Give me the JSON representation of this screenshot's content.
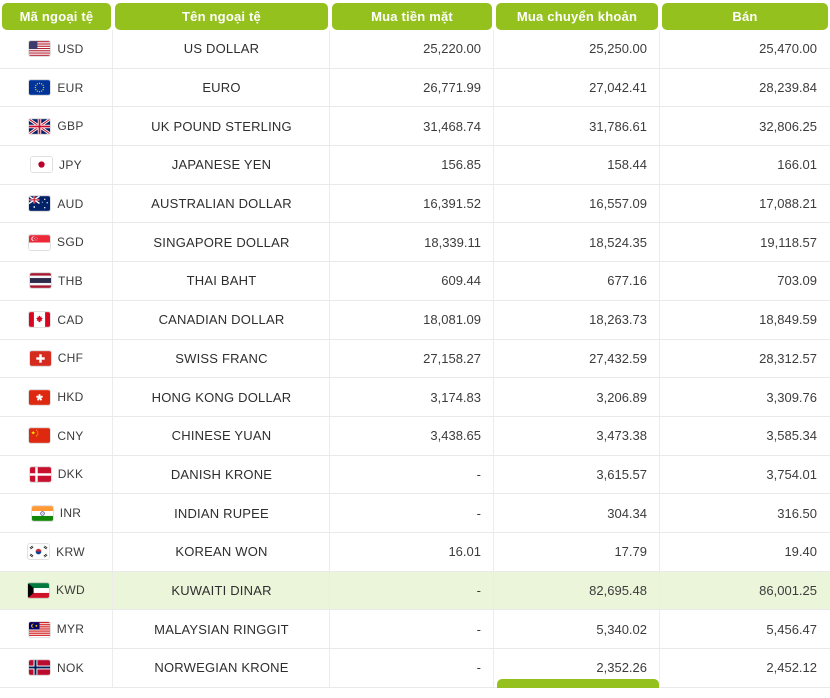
{
  "colors": {
    "header_green": "#95c11f",
    "highlight_row": "#ebf5da"
  },
  "table": {
    "columns": [
      "Mã ngoại tệ",
      "Tên ngoại tệ",
      "Mua tiền mặt",
      "Mua chuyển khoản",
      "Bán"
    ],
    "rows": [
      {
        "flag": "flag-us",
        "code": "USD",
        "name": "US DOLLAR",
        "cash": "25,220.00",
        "transfer": "25,250.00",
        "sell": "25,470.00",
        "highlight": false
      },
      {
        "flag": "flag-eu",
        "code": "EUR",
        "name": "EURO",
        "cash": "26,771.99",
        "transfer": "27,042.41",
        "sell": "28,239.84",
        "highlight": false
      },
      {
        "flag": "flag-gb",
        "code": "GBP",
        "name": "UK POUND STERLING",
        "cash": "31,468.74",
        "transfer": "31,786.61",
        "sell": "32,806.25",
        "highlight": false
      },
      {
        "flag": "flag-jp",
        "code": "JPY",
        "name": "JAPANESE YEN",
        "cash": "156.85",
        "transfer": "158.44",
        "sell": "166.01",
        "highlight": false
      },
      {
        "flag": "flag-au",
        "code": "AUD",
        "name": "AUSTRALIAN DOLLAR",
        "cash": "16,391.52",
        "transfer": "16,557.09",
        "sell": "17,088.21",
        "highlight": false
      },
      {
        "flag": "flag-sg",
        "code": "SGD",
        "name": "SINGAPORE DOLLAR",
        "cash": "18,339.11",
        "transfer": "18,524.35",
        "sell": "19,118.57",
        "highlight": false
      },
      {
        "flag": "flag-th",
        "code": "THB",
        "name": "THAI BAHT",
        "cash": "609.44",
        "transfer": "677.16",
        "sell": "703.09",
        "highlight": false
      },
      {
        "flag": "flag-ca",
        "code": "CAD",
        "name": "CANADIAN DOLLAR",
        "cash": "18,081.09",
        "transfer": "18,263.73",
        "sell": "18,849.59",
        "highlight": false
      },
      {
        "flag": "flag-ch",
        "code": "CHF",
        "name": "SWISS FRANC",
        "cash": "27,158.27",
        "transfer": "27,432.59",
        "sell": "28,312.57",
        "highlight": false
      },
      {
        "flag": "flag-hk",
        "code": "HKD",
        "name": "HONG KONG DOLLAR",
        "cash": "3,174.83",
        "transfer": "3,206.89",
        "sell": "3,309.76",
        "highlight": false
      },
      {
        "flag": "flag-cn",
        "code": "CNY",
        "name": "CHINESE YUAN",
        "cash": "3,438.65",
        "transfer": "3,473.38",
        "sell": "3,585.34",
        "highlight": false
      },
      {
        "flag": "flag-dk",
        "code": "DKK",
        "name": "DANISH KRONE",
        "cash": "-",
        "transfer": "3,615.57",
        "sell": "3,754.01",
        "highlight": false
      },
      {
        "flag": "flag-in",
        "code": "INR",
        "name": "INDIAN RUPEE",
        "cash": "-",
        "transfer": "304.34",
        "sell": "316.50",
        "highlight": false
      },
      {
        "flag": "flag-kr",
        "code": "KRW",
        "name": "KOREAN WON",
        "cash": "16.01",
        "transfer": "17.79",
        "sell": "19.40",
        "highlight": false
      },
      {
        "flag": "flag-kw",
        "code": "KWD",
        "name": "KUWAITI DINAR",
        "cash": "-",
        "transfer": "82,695.48",
        "sell": "86,001.25",
        "highlight": true
      },
      {
        "flag": "flag-my",
        "code": "MYR",
        "name": "MALAYSIAN RINGGIT",
        "cash": "-",
        "transfer": "5,340.02",
        "sell": "5,456.47",
        "highlight": false
      },
      {
        "flag": "flag-no",
        "code": "NOK",
        "name": "NORWEGIAN KRONE",
        "cash": "-",
        "transfer": "2,352.26",
        "sell": "2,452.12",
        "highlight": false
      }
    ]
  }
}
